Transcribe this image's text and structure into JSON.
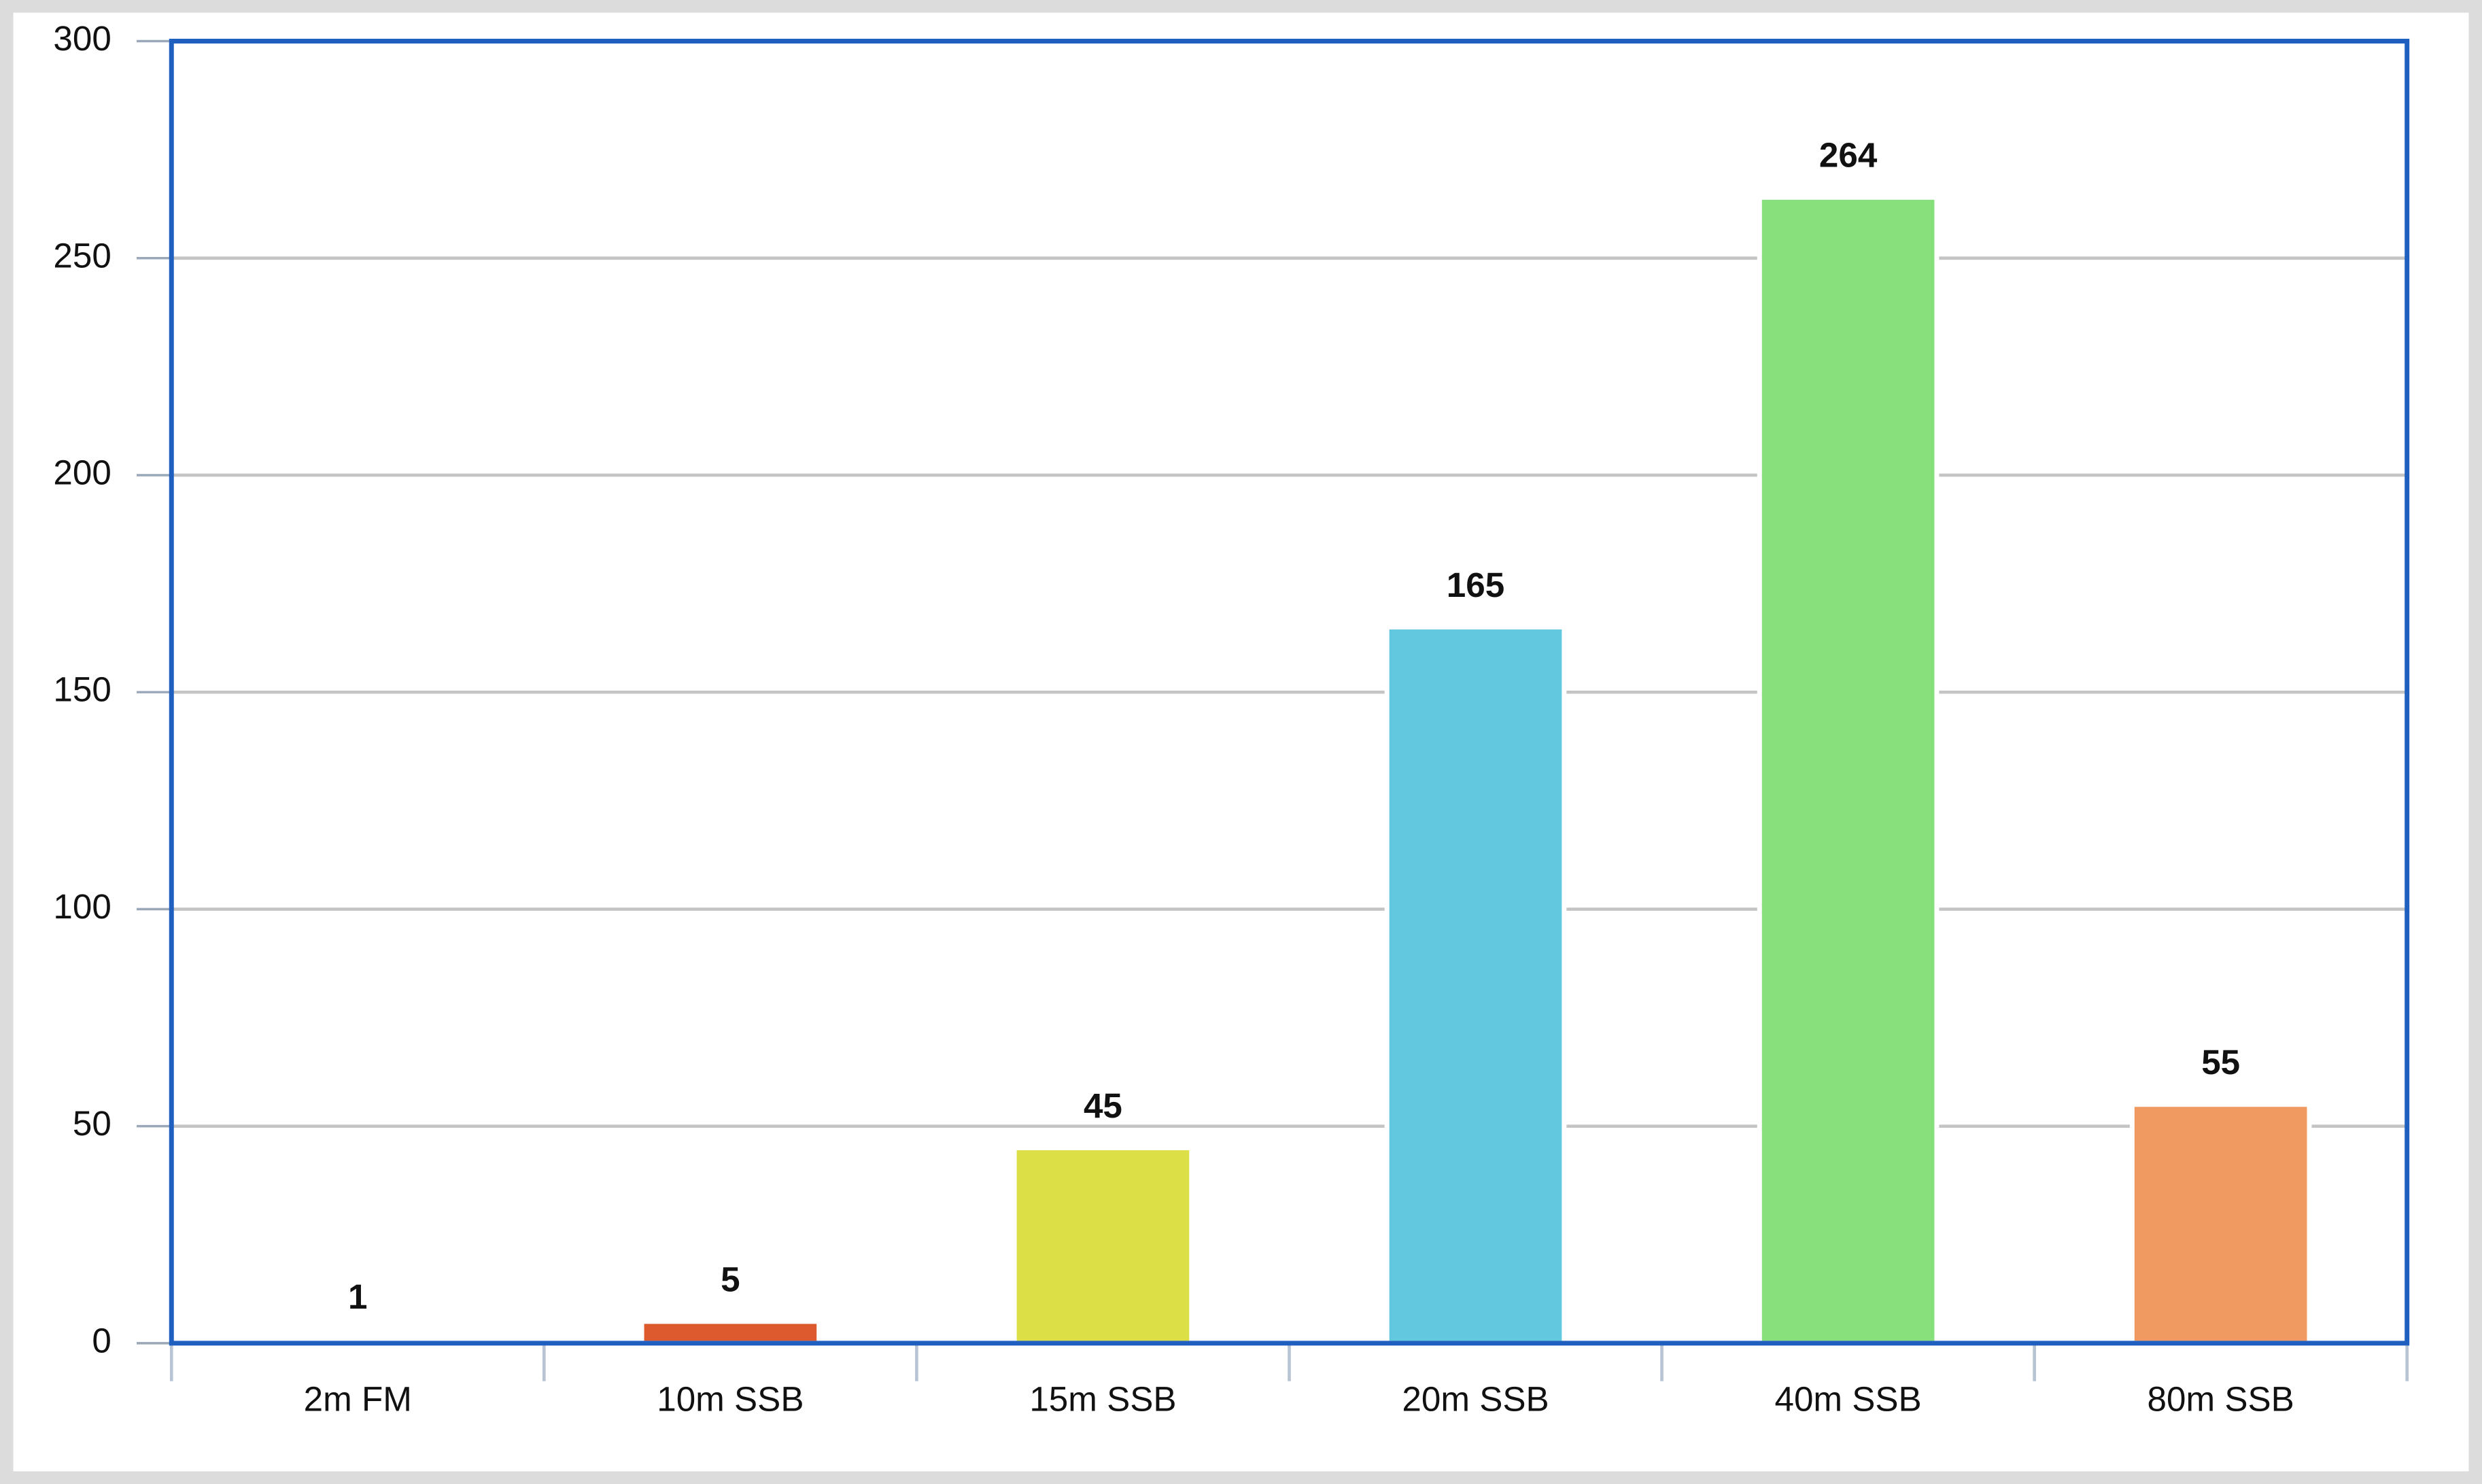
{
  "chart_data": {
    "type": "bar",
    "categories": [
      "2m FM",
      "10m SSB",
      "15m SSB",
      "20m SSB",
      "40m SSB",
      "80m SSB"
    ],
    "values": [
      1,
      5,
      45,
      165,
      264,
      55
    ],
    "colors": [
      "#3366cc",
      "#dc5a2e",
      "#dcdf45",
      "#62c8e0",
      "#88e07d",
      "#f09a62"
    ],
    "ylim": [
      0,
      300
    ],
    "yticks": [
      0,
      50,
      100,
      150,
      200,
      250,
      300
    ],
    "grid": true
  }
}
